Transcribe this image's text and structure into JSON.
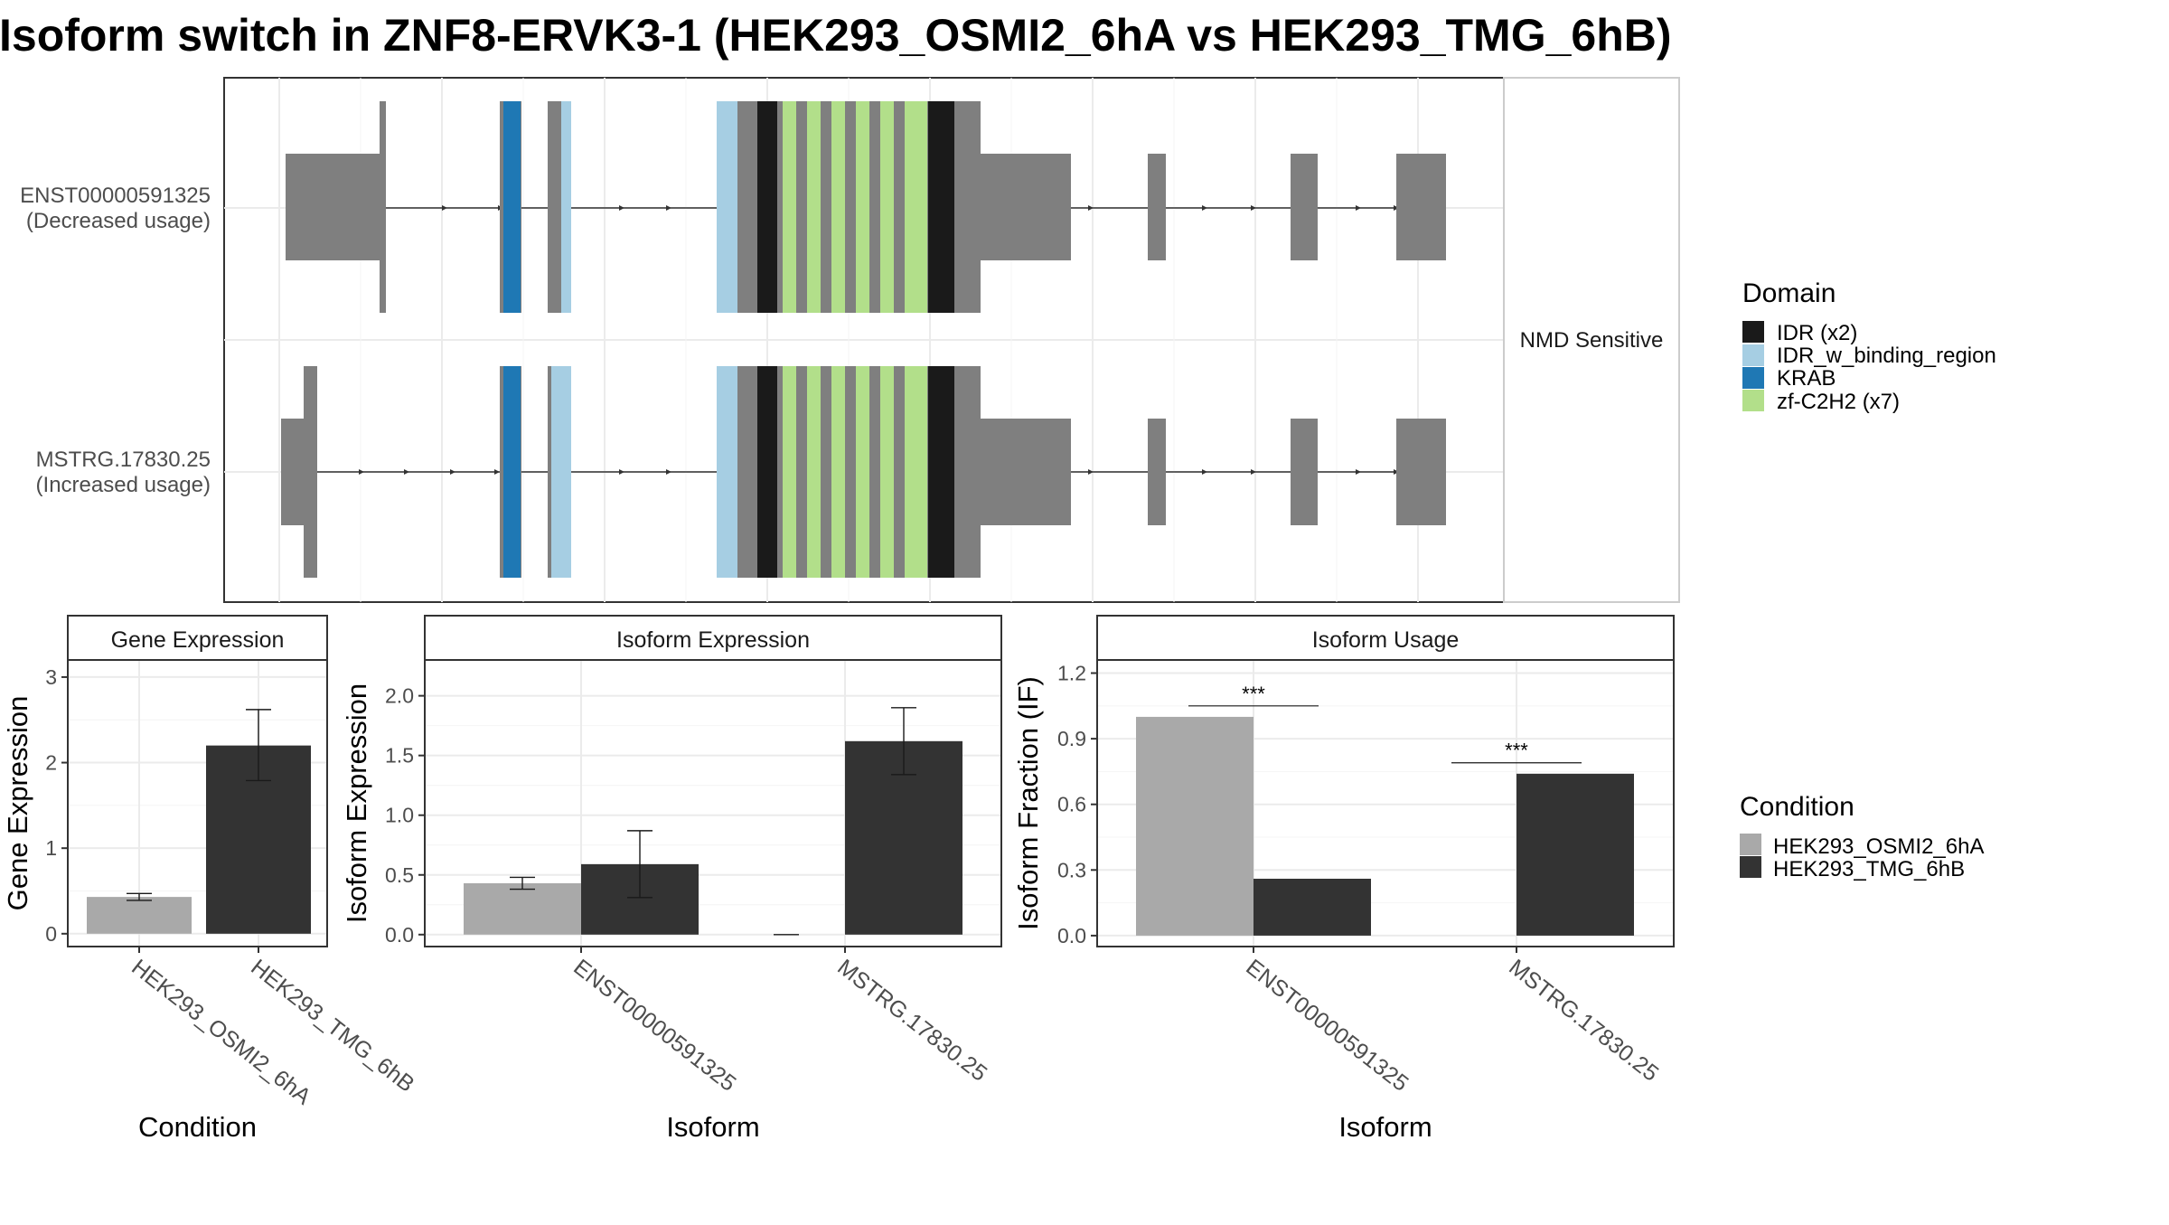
{
  "title": "Isoform switch in ZNF8-ERVK3-1 (HEK293_OSMI2_6hA vs HEK293_TMG_6hB)",
  "structure": {
    "isoforms": [
      {
        "id": "ENST00000591325",
        "usage_label": "(Decreased usage)"
      },
      {
        "id": "MSTRG.17830.25",
        "usage_label": "(Increased usage)"
      }
    ],
    "strip_label": "NMD Sensitive"
  },
  "domain_legend": {
    "title": "Domain",
    "items": [
      {
        "label": "IDR (x2)",
        "color": "#1a1a1a"
      },
      {
        "label": "IDR_w_binding_region",
        "color": "#a6cee3"
      },
      {
        "label": "KRAB",
        "color": "#1f78b4"
      },
      {
        "label": "zf-C2H2 (x7)",
        "color": "#b2df8a"
      }
    ]
  },
  "condition_legend": {
    "title": "Condition",
    "items": [
      {
        "label": "HEK293_OSMI2_6hA",
        "color": "#a9a9a9"
      },
      {
        "label": "HEK293_TMG_6hB",
        "color": "#333333"
      }
    ]
  },
  "chart_data": [
    {
      "type": "bar",
      "title": "Gene Expression",
      "xlabel": "Condition",
      "ylabel": "Gene Expression",
      "categories": [
        "HEK293_OSMI2_6hA",
        "HEK293_TMG_6hB"
      ],
      "values": [
        0.43,
        2.2
      ],
      "error_low": [
        0.39,
        1.79
      ],
      "error_high": [
        0.47,
        2.62
      ],
      "ylim": [
        -0.15,
        3.2
      ],
      "yticks": [
        0,
        1,
        2,
        3
      ],
      "grid": true
    },
    {
      "type": "bar",
      "title": "Isoform Expression",
      "xlabel": "Isoform",
      "ylabel": "Isoform Expression",
      "categories": [
        "ENST00000591325",
        "MSTRG.17830.25"
      ],
      "series": [
        {
          "name": "HEK293_OSMI2_6hA",
          "values": [
            0.43,
            0.0
          ],
          "error_low": [
            0.38,
            0.0
          ],
          "error_high": [
            0.48,
            0.0
          ]
        },
        {
          "name": "HEK293_TMG_6hB",
          "values": [
            0.59,
            1.62
          ],
          "error_low": [
            0.31,
            1.34
          ],
          "error_high": [
            0.87,
            1.9
          ]
        }
      ],
      "ylim": [
        -0.1,
        2.3
      ],
      "yticks": [
        0.0,
        0.5,
        1.0,
        1.5,
        2.0
      ],
      "ytick_labels": [
        "0.0",
        "0.5",
        "1.0",
        "1.5",
        "2.0"
      ],
      "grid": true
    },
    {
      "type": "bar",
      "title": "Isoform Usage",
      "xlabel": "Isoform",
      "ylabel": "Isoform Fraction (IF)",
      "categories": [
        "ENST00000591325",
        "MSTRG.17830.25"
      ],
      "series": [
        {
          "name": "HEK293_OSMI2_6hA",
          "values": [
            1.0,
            0.0
          ]
        },
        {
          "name": "HEK293_TMG_6hB",
          "values": [
            0.26,
            0.74
          ]
        }
      ],
      "significance": [
        {
          "category": "ENST00000591325",
          "label": "***",
          "y": 1.05
        },
        {
          "category": "MSTRG.17830.25",
          "label": "***",
          "y": 0.79
        }
      ],
      "ylim": [
        -0.05,
        1.26
      ],
      "yticks": [
        0.0,
        0.3,
        0.6,
        0.9,
        1.2
      ],
      "ytick_labels": [
        "0.0",
        "0.3",
        "0.6",
        "0.9",
        "1.2"
      ],
      "grid": true
    }
  ]
}
